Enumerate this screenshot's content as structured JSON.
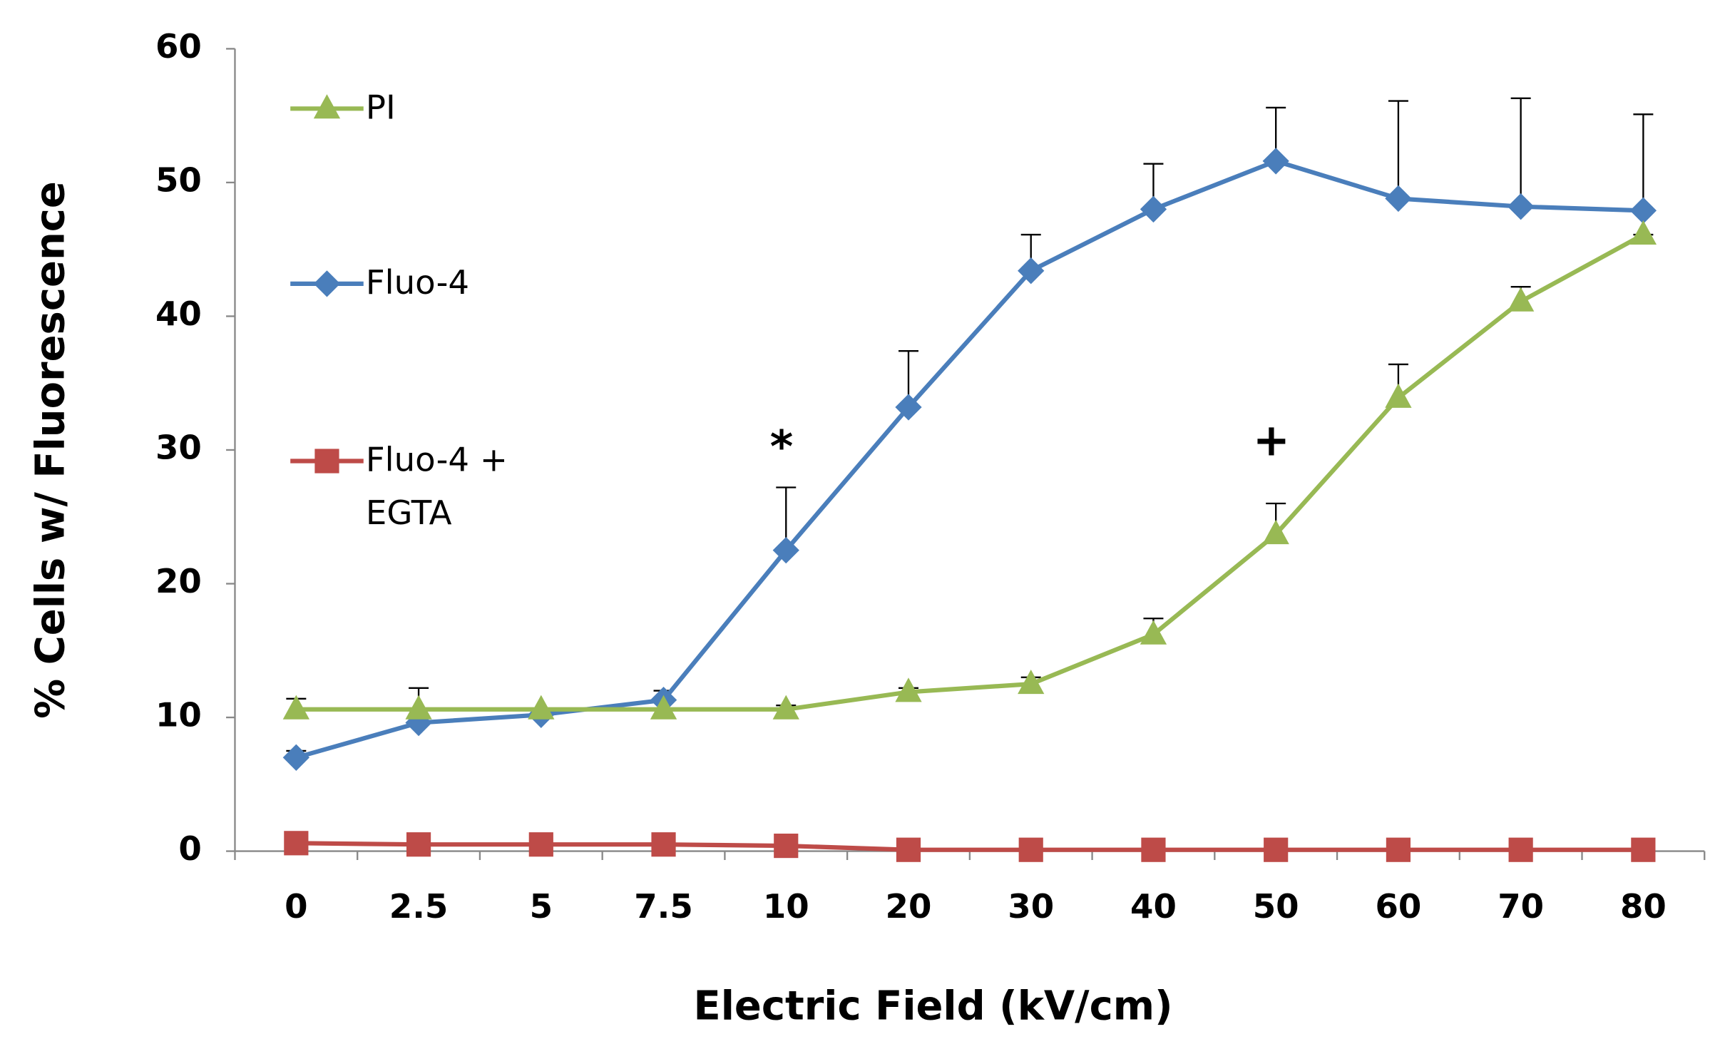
{
  "chart_data": {
    "type": "line",
    "x_label": "Electric Field (kV/cm)",
    "y_label": "% Cells w/ Fluorescence",
    "categories": [
      "0",
      "2.5",
      "5",
      "7.5",
      "10",
      "20",
      "30",
      "40",
      "50",
      "60",
      "70",
      "80"
    ],
    "ylim": [
      0,
      60
    ],
    "yticks": [
      0,
      10,
      20,
      30,
      40,
      50,
      60
    ],
    "legend_position": "upper left",
    "series": [
      {
        "name": "Fluo-4 + EGTA",
        "color": "#be4b48",
        "marker": "square",
        "values": [
          0.6,
          0.5,
          0.5,
          0.5,
          0.4,
          0.1,
          0.1,
          0.1,
          0.1,
          0.1,
          0.1,
          0.1
        ]
      },
      {
        "name": "Fluo-4",
        "color": "#4a7ebb",
        "marker": "diamond",
        "values": [
          7,
          9.6,
          10.2,
          11.3,
          22.5,
          33.2,
          43.4,
          48,
          51.6,
          48.8,
          48.2,
          47.9
        ],
        "errors": [
          0.5,
          2.6,
          0.3,
          0.7,
          4.7,
          4.2,
          2.7,
          3.4,
          4,
          7.3,
          8.1,
          7.2
        ]
      },
      {
        "name": "PI",
        "color": "#98b954",
        "marker": "triangle",
        "values": [
          10.6,
          10.6,
          10.6,
          10.6,
          10.6,
          11.9,
          12.5,
          16.2,
          23.7,
          33.9,
          41.1,
          46.1
        ],
        "errors": [
          0.8,
          0,
          0,
          0,
          0.3,
          0.3,
          0.5,
          1.2,
          2.3,
          2.5,
          1.1,
          0
        ]
      }
    ],
    "annotations": [
      {
        "text": "*",
        "category": "10",
        "y": 30
      },
      {
        "text": "+",
        "category": "50",
        "y": 30.5
      }
    ]
  }
}
